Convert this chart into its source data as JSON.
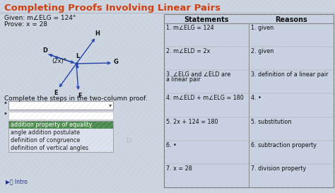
{
  "title": "Completing Proofs Involving Linear Pairs",
  "title_color": "#d04010",
  "bg_color": "#cdd5e0",
  "given_text": "Given: m∠ELG = 124°",
  "prove_text": "Prove: x = 28",
  "complete_text": "Complete the steps in the two-column proof.",
  "statements_header": "Statements",
  "reasons_header": "Reasons",
  "statements": [
    "1. m∠ELG = 124",
    "2. m∠ELD = 2x",
    "3. ∠ELG and ∠ELD are\n   a linear pair",
    "4. m∠ELD + m∠ELG = 180",
    "5. 2x + 124 = 180",
    "6. •",
    "7. x = 28"
  ],
  "reasons": [
    "1. given",
    "2. given",
    "3. definition of a linear pair",
    "4. •",
    "5. substitution",
    "6. subtraction property",
    "7. division property"
  ],
  "dropdown_options": [
    "addition property of equality",
    "angle addition postulate",
    "definition of congruence",
    "definition of vertical angles"
  ],
  "angle_label": "(2x)°",
  "arrow_color": "#2244aa",
  "table_bg": "#c8d0de",
  "table_line_color": "#888888",
  "dropdown_highlight": "#4a8a4a",
  "dropdown_bg": "#dde3ee"
}
